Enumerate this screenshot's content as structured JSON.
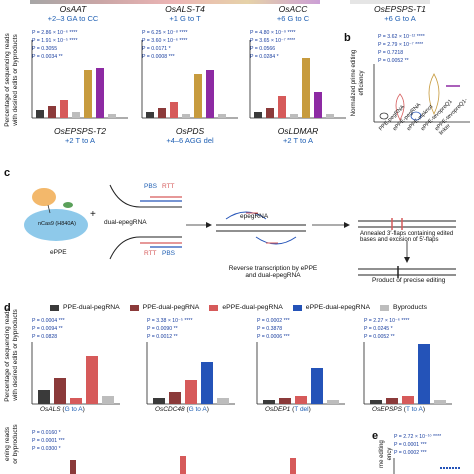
{
  "colors": {
    "ppe": "#3a3a3a",
    "ppe_dual": "#8b3a3a",
    "eppe_dual": "#d65a5a",
    "epegrna_dual": "#2453b8",
    "byproducts": "#bdbdbd",
    "gold": "#c79b3e",
    "purple": "#8d2aa3",
    "annotation_blue": "#1f5fb3"
  },
  "panel_a": {
    "ylabel": "Percentage of sequencing reads\nwith desired edits or byproducts",
    "top_row": [
      {
        "gene": "OsAAT",
        "edit": "+2–3 GA to CC",
        "pvals": [
          "P = 2.86 × 10⁻⁶ ****",
          "P = 1.91 × 10⁻⁵ ****",
          "P = 0.3055",
          "P = 0.0034 **"
        ]
      },
      {
        "gene": "OsALS-T4",
        "edit": "+1 G to T",
        "pvals": [
          "P = 6.25 × 10⁻⁸ ****",
          "P = 3.60 × 10⁻⁶ ****",
          "P = 0.0171 *",
          "P = 0.0008 ***"
        ]
      },
      {
        "gene": "OsACC",
        "edit": "+6 G to C",
        "pvals": [
          "P = 4.80 × 10⁻⁹ ****",
          "P = 3.65 × 10⁻⁷ ****",
          "P = 0.0566",
          "P = 0.0284 *"
        ]
      },
      {
        "gene": "OsEPSPS-T1",
        "edit": "+6 G to A"
      }
    ],
    "bottom_row": [
      {
        "gene": "OsEPSPS-T2",
        "edit": "+2 T to A"
      },
      {
        "gene": "OsPDS",
        "edit": "+4–6 AGG del"
      },
      {
        "gene": "OsLDMAR",
        "edit": "+2 T to A"
      }
    ]
  },
  "panel_b": {
    "letter": "b",
    "ylabel": "Normalized prime editing\nefficiency",
    "pvals": [
      "P = 3.62 × 10⁻¹² ****",
      "P = 2.79 × 10⁻⁷ ****",
      "P = 0.7218",
      "P = 0.0052 **"
    ],
    "xlabels": [
      "PPE-pegRNA",
      "ePPE-pegRNA",
      "ePPE-mpknot",
      "ePPE-tevopreQ1",
      "ePPE-tevopreQ1-linker"
    ]
  },
  "panel_c": {
    "letter": "c",
    "enzyme_label": "nCas9 (H840A)",
    "eppe_label": "ePPE",
    "plus": "+",
    "dual_label": "dual-epegRNA",
    "pbs": "PBS",
    "rtt": "RTT",
    "epegrna_label": "epegRNA",
    "rt_caption": "Reverse transcription by ePPE\nand dual-epegRNA",
    "annealed_caption": "Annealed 3′-flaps containing edited\nbases and excision of 5′-flaps",
    "product_caption": "Product of precise editing"
  },
  "panel_d": {
    "letter": "d",
    "legend": [
      "PPE-dual-pegRNA",
      "PPE-dual-pegRNA",
      "ePPE-dual-pegRNA",
      "ePPE-dual-epegRNA",
      "Byproducts"
    ],
    "ylabel": "Percentage of sequencing reads\nwith desired edits or byproducts",
    "charts": [
      {
        "gene": "OsALS",
        "edit": "G to A",
        "pvals": [
          "P = 0.0004 ***",
          "P = 0.0094 **",
          "P = 0.0828"
        ]
      },
      {
        "gene": "OsCDC48",
        "edit": "G to A",
        "pvals": [
          "P = 3.38 × 10⁻⁵ ****",
          "P = 0.0090 **",
          "P = 0.0012 **"
        ]
      },
      {
        "gene": "OsDEP1",
        "edit": "T del",
        "pvals": [
          "P = 0.0002 ***",
          "P = 0.3878",
          "P = 0.0006 ***"
        ]
      },
      {
        "gene": "OsEPSPS",
        "edit": "T to A",
        "pvals": [
          "P = 2.27 × 10⁻⁶ ****",
          "P = 0.0245 *",
          "P = 0.0052 **"
        ]
      }
    ],
    "bottom_pvals": [
      "P = 0.0160 *",
      "P = 0.0001 ***",
      "P = 0.0300 *"
    ],
    "bottom_ylabel": "ening reads\nor byproducts"
  },
  "panel_e": {
    "letter": "e",
    "pvals": [
      "P = 2.72 × 10⁻¹⁰ ****",
      "P = 0.0001 ***",
      "P = 0.0002 ***"
    ],
    "ylabel": "me editing\nency"
  }
}
